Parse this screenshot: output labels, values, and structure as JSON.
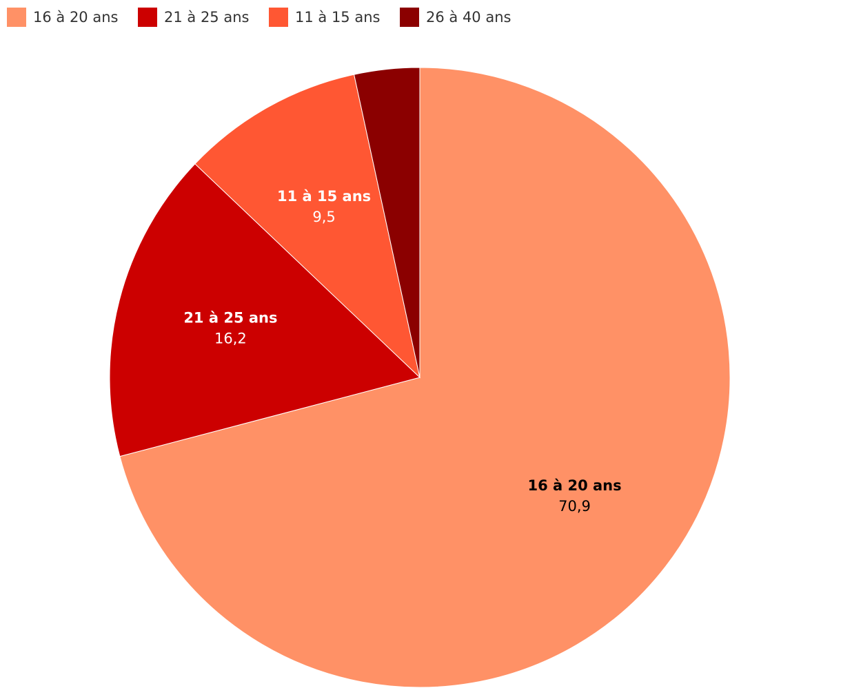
{
  "chart_data": {
    "type": "pie",
    "categories": [
      "16 à 20 ans",
      "21 à 25 ans",
      "11 à 15 ans",
      "26 à 40 ans"
    ],
    "values": [
      70.9,
      16.2,
      9.5,
      3.4
    ],
    "value_labels": [
      "70,9",
      "16,2",
      "9,5",
      null
    ],
    "colors": [
      "#ff9166",
      "#cc0000",
      "#ff5733",
      "#8b0000"
    ],
    "label_colors": [
      "#000000",
      "#ffffff",
      "#ffffff",
      null
    ],
    "legend": "top-left"
  }
}
